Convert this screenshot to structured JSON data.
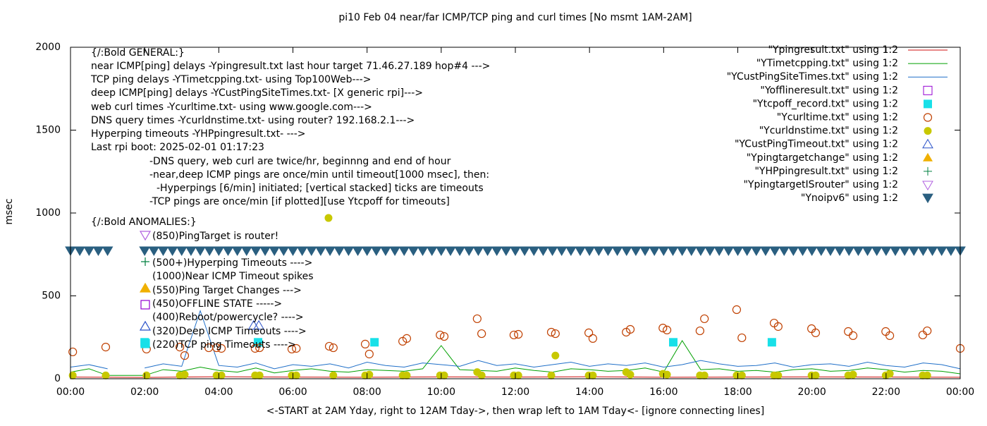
{
  "chart_data": {
    "type": "line",
    "title": "pi10 Feb 04  near/far ICMP/TCP ping and curl times [No msmt 1AM-2AM]",
    "x_label": "<-START at 2AM Yday, right to 12AM Tday->, then wrap left to 1AM Tday<- [ignore connecting lines]",
    "y_label": "msec",
    "xlim": [
      0,
      24
    ],
    "xticks": [
      {
        "value": 0,
        "label": "00:00"
      },
      {
        "value": 2,
        "label": "02:00"
      },
      {
        "value": 4,
        "label": "04:00"
      },
      {
        "value": 6,
        "label": "06:00"
      },
      {
        "value": 8,
        "label": "08:00"
      },
      {
        "value": 10,
        "label": "10:00"
      },
      {
        "value": 12,
        "label": "12:00"
      },
      {
        "value": 14,
        "label": "14:00"
      },
      {
        "value": 16,
        "label": "16:00"
      },
      {
        "value": 18,
        "label": "18:00"
      },
      {
        "value": 20,
        "label": "20:00"
      },
      {
        "value": 22,
        "label": "22:00"
      },
      {
        "value": 24,
        "label": "00:00"
      }
    ],
    "ylim": [
      0,
      2000
    ],
    "yticks": [
      0,
      500,
      1000,
      1500,
      2000
    ],
    "grid": false,
    "legend": "top-right",
    "annotations": [
      "{/:Bold GENERAL:}",
      "near ICMP[ping] delays -Ypingresult.txt last hour target 71.46.27.189 hop#4 --->",
      "TCP ping delays -YTimetcpping.txt- using Top100Web--->",
      "deep ICMP[ping] delays -YCustPingSiteTimes.txt- [X generic rpi]--->",
      "web curl times -Ycurltime.txt- using www.google.com--->",
      "DNS query times -Ycurldnstime.txt- using router? 192.168.2.1--->",
      "Hyperping timeouts -YHPpingresult.txt- --->",
      "Last rpi boot: 2025-02-01 01:17:23",
      "-DNS query, web curl are twice/hr, beginnng and end of hour",
      "-near,deep ICMP pings are once/min until timeout[1000 msec], then:",
      "-Hyperpings [6/min] initiated; [vertical stacked] ticks are timeouts",
      "-TCP pings are once/min [if plotted][use Ytcpoff for timeouts]",
      "{/:Bold ANOMALIES:}",
      "(850)PingTarget is router!",
      "(500+)Hyperping Timeouts ---->",
      "(1000)Near ICMP Timeout spikes",
      "(550)Ping Target Changes --->",
      "(450)OFFLINE STATE ----->",
      "(400)Reboot/powercycle? ---->",
      "(320)Deep ICMP Timeouts ---->",
      "(220)TCP ping Timeouts ---->"
    ],
    "series": [
      {
        "name": "\"Ypingresult.txt\" using 1:2",
        "color": "#d01010",
        "marker": "line",
        "x": [
          0,
          2,
          4,
          6,
          8,
          10,
          12,
          14,
          16,
          18,
          20,
          22,
          24
        ],
        "values": [
          10,
          8,
          12,
          10,
          9,
          11,
          10,
          12,
          9,
          10,
          11,
          10,
          9
        ]
      },
      {
        "name": "\"YTimetcpping.txt\" using 1:2",
        "color": "#00a000",
        "marker": "line",
        "x": [
          0,
          0.5,
          1,
          1.5,
          2,
          2.5,
          3,
          3.5,
          4,
          4.5,
          5,
          5.5,
          6,
          6.5,
          7,
          7.5,
          8,
          8.5,
          9,
          9.5,
          10,
          10.5,
          11,
          11.5,
          12,
          12.5,
          13,
          13.5,
          14,
          14.5,
          15,
          15.5,
          16,
          16.5,
          17,
          17.5,
          18,
          18.5,
          19,
          19.5,
          20,
          20.5,
          21,
          21.5,
          22,
          22.5,
          23,
          23.5,
          24
        ],
        "values": [
          40,
          60,
          20,
          20,
          20,
          55,
          45,
          70,
          50,
          40,
          65,
          35,
          50,
          60,
          45,
          40,
          55,
          50,
          45,
          60,
          200,
          55,
          50,
          45,
          65,
          50,
          40,
          60,
          55,
          45,
          50,
          65,
          40,
          230,
          55,
          60,
          45,
          50,
          40,
          55,
          60,
          45,
          50,
          65,
          55,
          40,
          50,
          45,
          30
        ]
      },
      {
        "name": "\"YCustPingSiteTimes.txt\" using 1:2",
        "color": "#1f6fc8",
        "marker": "line",
        "x": [
          0,
          0.5,
          1,
          1.5,
          2,
          2.5,
          3,
          3.5,
          4,
          4.5,
          5,
          5.5,
          6,
          6.5,
          7,
          7.5,
          8,
          8.5,
          9,
          9.5,
          10,
          10.5,
          11,
          11.5,
          12,
          12.5,
          13,
          13.5,
          14,
          14.5,
          15,
          15.5,
          16,
          16.5,
          17,
          17.5,
          18,
          18.5,
          19,
          19.5,
          20,
          20.5,
          21,
          21.5,
          22,
          22.5,
          23,
          23.5,
          24
        ],
        "values": [
          70,
          85,
          60,
          null,
          65,
          90,
          75,
          410,
          80,
          70,
          95,
          60,
          85,
          75,
          90,
          65,
          100,
          80,
          70,
          95,
          85,
          75,
          110,
          80,
          90,
          70,
          85,
          100,
          75,
          90,
          80,
          95,
          70,
          85,
          110,
          90,
          75,
          80,
          95,
          70,
          85,
          90,
          75,
          100,
          80,
          70,
          95,
          85,
          60
        ]
      },
      {
        "name": "\"Yofflineresult.txt\" using 1:2",
        "color": "#9400d3",
        "marker": "open-square",
        "x": [],
        "values": []
      },
      {
        "name": "\"Ytcpoff_record.txt\" using 1:2",
        "color": "#18e0e8",
        "marker": "square",
        "x": [
          2.0,
          5.06,
          8.2,
          16.26,
          18.92
        ],
        "values": [
          220,
          220,
          220,
          220,
          220
        ]
      },
      {
        "name": "\"Ycurltime.txt\" using 1:2",
        "color": "#c04000",
        "marker": "open-circle",
        "x": [
          0.06,
          0.95,
          2.05,
          2.95,
          3.08,
          3.73,
          3.94,
          4.07,
          4.98,
          5.1,
          5.97,
          6.09,
          6.98,
          7.09,
          7.95,
          8.06,
          8.96,
          9.07,
          9.97,
          10.08,
          10.97,
          11.09,
          11.96,
          12.08,
          12.97,
          13.08,
          13.98,
          14.09,
          14.99,
          15.1,
          15.98,
          16.09,
          16.98,
          17.1,
          17.97,
          18.11,
          18.98,
          19.09,
          19.99,
          20.1,
          20.98,
          21.11,
          21.99,
          22.1,
          22.99,
          23.11,
          24.0
        ],
        "values": [
          162,
          191,
          179,
          191,
          140,
          187,
          187,
          183,
          183,
          187,
          179,
          183,
          196,
          187,
          209,
          149,
          226,
          243,
          264,
          255,
          362,
          272,
          264,
          268,
          281,
          272,
          277,
          243,
          281,
          298,
          306,
          294,
          289,
          362,
          417,
          247,
          336,
          315,
          302,
          277,
          285,
          260,
          285,
          260,
          264,
          289,
          183
        ]
      },
      {
        "name": "\"Ycurldnstime.txt\" using 1:2",
        "color": "#c8c800",
        "marker": "dot",
        "x": [
          0.06,
          0.95,
          2.05,
          2.95,
          3.08,
          3.94,
          4.07,
          4.98,
          5.1,
          5.97,
          6.09,
          6.96,
          7.09,
          7.95,
          8.06,
          8.96,
          9.07,
          9.97,
          10.08,
          10.97,
          11.09,
          11.96,
          12.08,
          12.97,
          13.08,
          13.98,
          14.09,
          14.99,
          15.1,
          15.98,
          16.09,
          16.98,
          17.1,
          17.97,
          18.11,
          18.98,
          19.09,
          19.99,
          20.1,
          20.98,
          21.11,
          21.99,
          22.1,
          22.99,
          23.11
        ],
        "values": [
          20,
          20,
          20,
          20,
          25,
          20,
          20,
          20,
          20,
          20,
          20,
          970,
          20,
          20,
          25,
          20,
          20,
          20,
          20,
          40,
          20,
          20,
          20,
          20,
          140,
          20,
          20,
          40,
          25,
          30,
          25,
          20,
          20,
          20,
          20,
          20,
          20,
          20,
          20,
          20,
          25,
          20,
          30,
          20,
          20
        ]
      },
      {
        "name": "\"YCustPingTimeout.txt\" using 1:2",
        "color": "#2850c8",
        "marker": "open-triangle",
        "x": [
          4.94,
          5.08
        ],
        "values": [
          320,
          320
        ]
      },
      {
        "name": "\"Ypingtargetchange\" using 1:2",
        "color": "#f0b000",
        "marker": "triangle",
        "x": [],
        "values": []
      },
      {
        "name": "\"YHPpingresult.txt\" using 1:2",
        "color": "#008040",
        "marker": "plus",
        "x": [],
        "values": []
      },
      {
        "name": "\"YpingtargetISrouter\" using 1:2",
        "color": "#b060e0",
        "marker": "open-down-triangle",
        "x": [],
        "values": []
      },
      {
        "name": "\"Ynoipv6\" using 1:2",
        "color": "#2a5f80",
        "marker": "down-triangle",
        "x": [
          0,
          0.25,
          0.5,
          0.75,
          1.0,
          2.0,
          2.25,
          2.5,
          2.75,
          3.0,
          3.25,
          3.5,
          3.75,
          4.0,
          4.25,
          4.5,
          4.75,
          5.0,
          5.25,
          5.5,
          5.75,
          6.0,
          6.25,
          6.5,
          6.75,
          7.0,
          7.25,
          7.5,
          7.75,
          8.0,
          8.25,
          8.5,
          8.75,
          9.0,
          9.25,
          9.5,
          9.75,
          10.0,
          10.25,
          10.5,
          10.75,
          11.0,
          11.25,
          11.5,
          11.75,
          12.0,
          12.25,
          12.5,
          12.75,
          13.0,
          13.25,
          13.5,
          13.75,
          14.0,
          14.25,
          14.5,
          14.75,
          15.0,
          15.25,
          15.5,
          15.75,
          16.0,
          16.25,
          16.5,
          16.75,
          17.0,
          17.25,
          17.5,
          17.75,
          18.0,
          18.25,
          18.5,
          18.75,
          19.0,
          19.25,
          19.5,
          19.75,
          20.0,
          20.25,
          20.5,
          20.75,
          21.0,
          21.25,
          21.5,
          21.75,
          22.0,
          22.25,
          22.5,
          22.75,
          23.0,
          23.25,
          23.5,
          23.75,
          24.0
        ],
        "values": [
          770,
          770,
          770,
          770,
          770,
          770,
          770,
          770,
          770,
          770,
          770,
          770,
          770,
          770,
          770,
          770,
          770,
          770,
          770,
          770,
          770,
          770,
          770,
          770,
          770,
          770,
          770,
          770,
          770,
          770,
          770,
          770,
          770,
          770,
          770,
          770,
          770,
          770,
          770,
          770,
          770,
          770,
          770,
          770,
          770,
          770,
          770,
          770,
          770,
          770,
          770,
          770,
          770,
          770,
          770,
          770,
          770,
          770,
          770,
          770,
          770,
          770,
          770,
          770,
          770,
          770,
          770,
          770,
          770,
          770,
          770,
          770,
          770,
          770,
          770,
          770,
          770,
          770,
          770,
          770,
          770,
          770,
          770,
          770,
          770,
          770,
          770,
          770,
          770,
          770,
          770,
          770,
          770,
          770
        ]
      }
    ]
  }
}
